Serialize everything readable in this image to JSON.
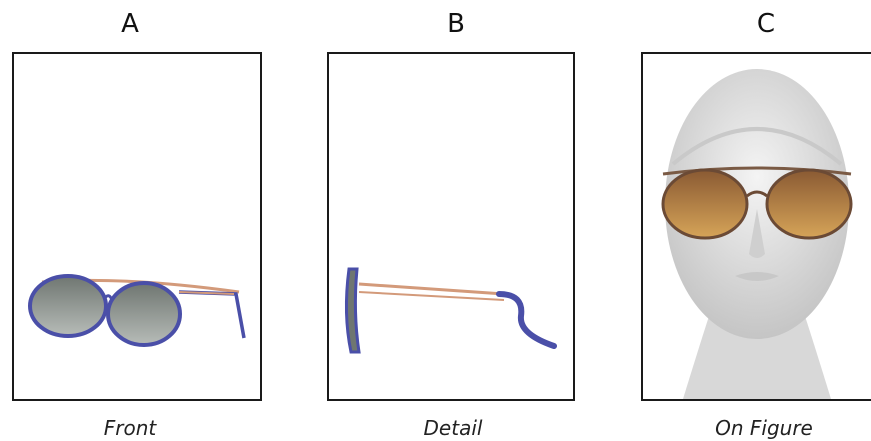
{
  "panels": [
    {
      "letter": "A",
      "caption": "Front"
    },
    {
      "letter": "B",
      "caption": "Detail"
    },
    {
      "letter": "C",
      "caption": "On Figure"
    }
  ],
  "colors": {
    "frame_blue": "#4a4fa8",
    "temple_copper": "#d39a7a",
    "lens_gray": "#7f8680",
    "lens_amber": "#b07a38",
    "border": "#1a1a1a"
  }
}
